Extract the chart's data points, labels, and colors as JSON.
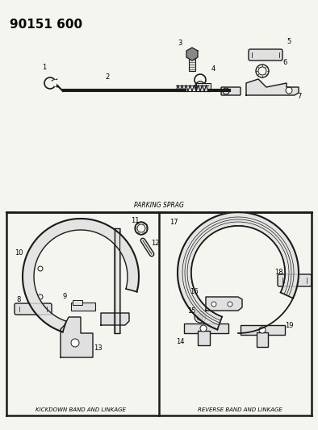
{
  "title": "90151 600",
  "title_fontsize": 11,
  "title_fontweight": "bold",
  "bg_color": "#f5f5f0",
  "line_color": "#1a1a1a",
  "text_color": "#000000",
  "fig_width": 3.94,
  "fig_height": 5.33,
  "dpi": 100,
  "parking_sprag_label": "PARKING SPRAG",
  "kickdown_label": "KICKDOWN BAND AND LINKAGE",
  "reverse_label": "REVERSE BAND AND LINKAGE",
  "gray_fill": "#c8c8c8",
  "light_gray": "#e0e0e0",
  "dark_gray": "#888888"
}
